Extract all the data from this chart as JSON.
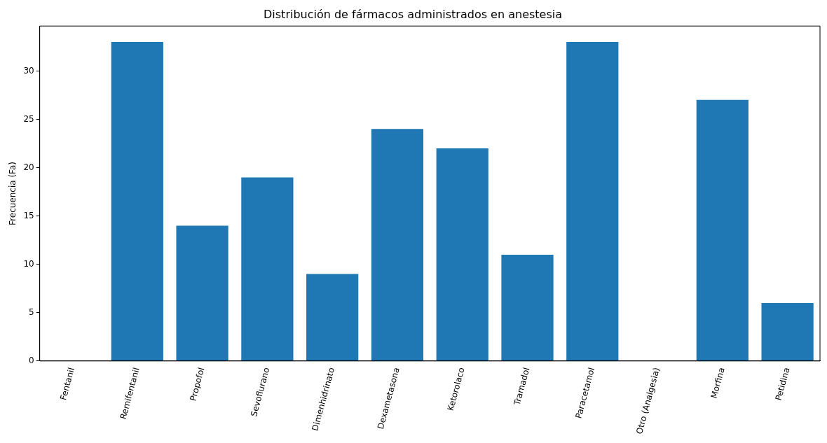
{
  "chart_data": {
    "type": "bar",
    "title": "Distribución de fármacos administrados en anestesia",
    "ylabel": "Frecuencia (Fa)",
    "categories": [
      "Fentanil",
      "Remifentanil",
      "Propofol",
      "Sevoflurano",
      "Dimenhidrinato",
      "Dexametasona",
      "Ketorolaco",
      "Tramadol",
      "Paracetamol",
      "Otro (Analgesia)",
      "Morfina",
      "Petidina"
    ],
    "values": [
      0,
      33,
      14,
      19,
      9,
      24,
      22,
      11,
      33,
      0,
      27,
      6
    ],
    "color": "#1f77b4",
    "ylim": [
      0,
      34.65
    ],
    "yticks": [
      0,
      5,
      10,
      15,
      20,
      25,
      30
    ],
    "grid": false,
    "legend": false
  }
}
